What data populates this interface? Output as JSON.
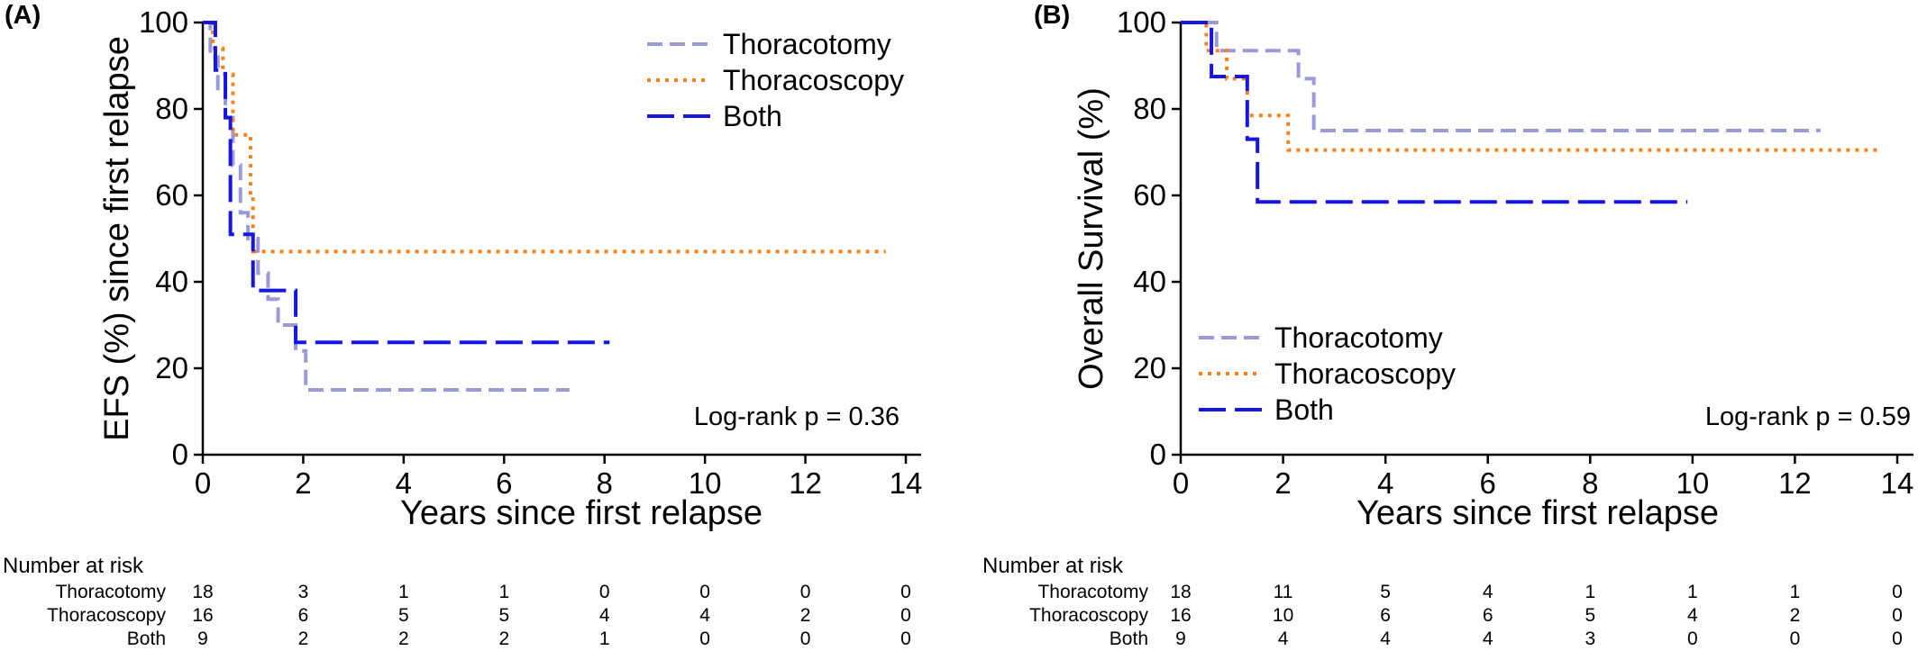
{
  "colors": {
    "thoracotomy": "#9a9ad8",
    "thoracoscopy": "#f5821f",
    "both": "#1616e0"
  },
  "chart_data": [
    {
      "type": "line",
      "panel_label": "(A)",
      "xlabel": "Years since first relapse",
      "ylabel": "EFS (%) since first relapse",
      "xlim": [
        0,
        15
      ],
      "ylim": [
        0,
        100
      ],
      "xticks": [
        0,
        2,
        4,
        6,
        8,
        10,
        12,
        14
      ],
      "yticks": [
        0,
        20,
        40,
        60,
        80,
        100
      ],
      "legend_position": "top-right",
      "annotation": "Log-rank p = 0.36",
      "series": [
        {
          "name": "Thoracotomy",
          "key": "thoracotomy",
          "style": "dashed",
          "x": [
            0,
            0.15,
            0.3,
            0.45,
            0.6,
            0.75,
            0.9,
            1.1,
            1.3,
            1.5,
            1.85,
            2.05,
            7.3
          ],
          "y": [
            100,
            92,
            84,
            78,
            67,
            56,
            50,
            42,
            36,
            30,
            24,
            15,
            15
          ]
        },
        {
          "name": "Thoracoscopy",
          "key": "thoracoscopy",
          "style": "dotted",
          "x": [
            0,
            0.2,
            0.4,
            0.6,
            0.8,
            0.95,
            1.0,
            13.6
          ],
          "y": [
            100,
            94,
            88,
            74,
            74,
            60,
            47,
            47
          ]
        },
        {
          "name": "Both",
          "key": "both",
          "style": "longdash",
          "x": [
            0,
            0.25,
            0.45,
            0.55,
            0.7,
            1.0,
            1.3,
            1.85,
            8.1
          ],
          "y": [
            100,
            89,
            78,
            51,
            51,
            38,
            38,
            26,
            26
          ]
        }
      ],
      "risk_table": {
        "header": "Number at risk",
        "rows": [
          {
            "label": "Thoracotomy",
            "values": [
              "18",
              "3",
              "1",
              "1",
              "0",
              "0",
              "0",
              "0"
            ]
          },
          {
            "label": "Thoracoscopy",
            "values": [
              "16",
              "6",
              "5",
              "5",
              "4",
              "4",
              "2",
              "0"
            ]
          },
          {
            "label": "Both",
            "values": [
              "9",
              "2",
              "2",
              "2",
              "1",
              "0",
              "0",
              "0"
            ]
          }
        ]
      }
    },
    {
      "type": "line",
      "panel_label": "(B)",
      "xlabel": "Years since first relapse",
      "ylabel": "Overall Survival (%)",
      "xlim": [
        0,
        14.5
      ],
      "ylim": [
        0,
        100
      ],
      "xticks": [
        0,
        2,
        4,
        6,
        8,
        10,
        12,
        14
      ],
      "yticks": [
        0,
        20,
        40,
        60,
        80,
        100
      ],
      "legend_position": "bottom-left",
      "annotation": "Log-rank p = 0.59",
      "series": [
        {
          "name": "Thoracotomy",
          "key": "thoracotomy",
          "style": "dashed",
          "x": [
            0,
            0.7,
            2.3,
            2.6,
            12.5
          ],
          "y": [
            100,
            93.5,
            87,
            75,
            75
          ]
        },
        {
          "name": "Thoracoscopy",
          "key": "thoracoscopy",
          "style": "dotted",
          "x": [
            0,
            0.5,
            0.9,
            1.3,
            1.7,
            2.1,
            13.7
          ],
          "y": [
            100,
            93.5,
            87,
            78.5,
            78.5,
            70.5,
            70.5
          ]
        },
        {
          "name": "Both",
          "key": "both",
          "style": "longdash",
          "x": [
            0,
            0.6,
            1.0,
            1.3,
            1.5,
            9.9
          ],
          "y": [
            100,
            87.5,
            87.5,
            73,
            58.5,
            58.5
          ]
        }
      ],
      "risk_table": {
        "header": "Number at risk",
        "rows": [
          {
            "label": "Thoracotomy",
            "values": [
              "18",
              "11",
              "5",
              "4",
              "1",
              "1",
              "1",
              "0"
            ]
          },
          {
            "label": "Thoracoscopy",
            "values": [
              "16",
              "10",
              "6",
              "6",
              "5",
              "4",
              "2",
              "0"
            ]
          },
          {
            "label": "Both",
            "values": [
              "9",
              "4",
              "4",
              "4",
              "3",
              "0",
              "0",
              "0"
            ]
          }
        ]
      }
    }
  ]
}
